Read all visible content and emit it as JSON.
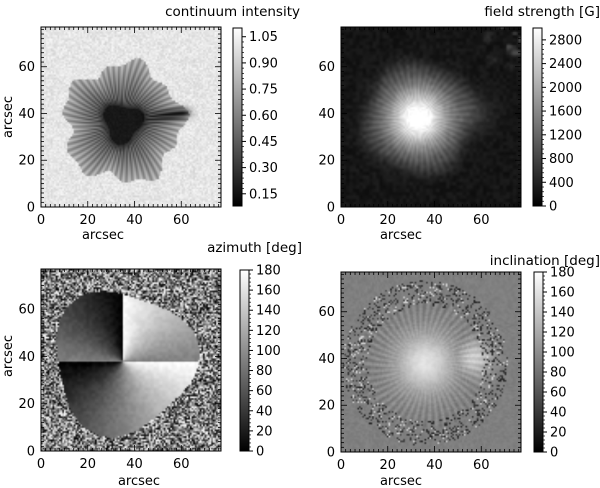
{
  "chart_data": [
    {
      "type": "heatmap",
      "title": "continuum intensity",
      "xlabel": "arcsec",
      "ylabel": "arcsec",
      "xlim": [
        0,
        77
      ],
      "ylim": [
        0,
        77
      ],
      "xticks": [
        "0",
        "20",
        "40",
        "60"
      ],
      "yticks": [
        "0",
        "20",
        "40",
        "60"
      ],
      "colorbar": {
        "ticks": [
          0.15,
          0.3,
          0.45,
          0.6,
          0.75,
          0.9,
          1.05
        ],
        "labels": [
          "0.15",
          "0.30",
          "0.45",
          "0.60",
          "0.75",
          "0.90",
          "1.05"
        ],
        "range": [
          0.08,
          1.1
        ]
      },
      "colormap": "gray",
      "features": {
        "umbra_center": [
          35,
          36
        ],
        "umbra_value": 0.15,
        "penumbra_value": 0.7,
        "quiet_sun_value": 1.0,
        "spot_radius": 25
      }
    },
    {
      "type": "heatmap",
      "title": "field strength [G]",
      "xlabel": "arcsec",
      "ylabel": "",
      "xlim": [
        0,
        77
      ],
      "ylim": [
        0,
        77
      ],
      "xticks": [
        "0",
        "20",
        "40",
        "60"
      ],
      "yticks": [
        "0",
        "20",
        "40",
        "60"
      ],
      "colorbar": {
        "ticks": [
          0,
          400,
          800,
          1200,
          1600,
          2000,
          2400,
          2800
        ],
        "labels": [
          "0",
          "400",
          "800",
          "1200",
          "1600",
          "2000",
          "2400",
          "2800"
        ],
        "range": [
          0,
          3000
        ]
      },
      "colormap": "gray",
      "features": {
        "peak_center": [
          33,
          38
        ],
        "peak_value": 2900,
        "background_value": 150
      }
    },
    {
      "type": "heatmap",
      "title": "azimuth [deg]",
      "xlabel": "arcsec",
      "ylabel": "arcsec",
      "xlim": [
        0,
        77
      ],
      "ylim": [
        0,
        77
      ],
      "xticks": [
        "0",
        "20",
        "40",
        "60"
      ],
      "yticks": [
        "0",
        "20",
        "40",
        "60"
      ],
      "colorbar": {
        "ticks": [
          0,
          20,
          40,
          60,
          80,
          100,
          120,
          140,
          160,
          180
        ],
        "labels": [
          "0",
          "20",
          "40",
          "60",
          "80",
          "100",
          "120",
          "140",
          "160",
          "180"
        ],
        "range": [
          0,
          180
        ]
      },
      "colormap": "gray",
      "features": {
        "center": [
          35,
          38
        ],
        "pattern": "radial 180-degree ambiguity"
      }
    },
    {
      "type": "heatmap",
      "title": "inclination [deg]",
      "xlabel": "arcsec",
      "ylabel": "",
      "xlim": [
        0,
        77
      ],
      "ylim": [
        0,
        77
      ],
      "xticks": [
        "0",
        "20",
        "40",
        "60"
      ],
      "yticks": [
        "0",
        "20",
        "40",
        "60"
      ],
      "colorbar": {
        "ticks": [
          0,
          20,
          40,
          60,
          80,
          100,
          120,
          140,
          160,
          180
        ],
        "labels": [
          "0",
          "20",
          "40",
          "60",
          "80",
          "100",
          "120",
          "140",
          "160",
          "180"
        ],
        "range": [
          0,
          180
        ]
      },
      "colormap": "gray",
      "features": {
        "center": [
          36,
          38
        ],
        "center_value": 160,
        "background_value": 90
      }
    }
  ]
}
